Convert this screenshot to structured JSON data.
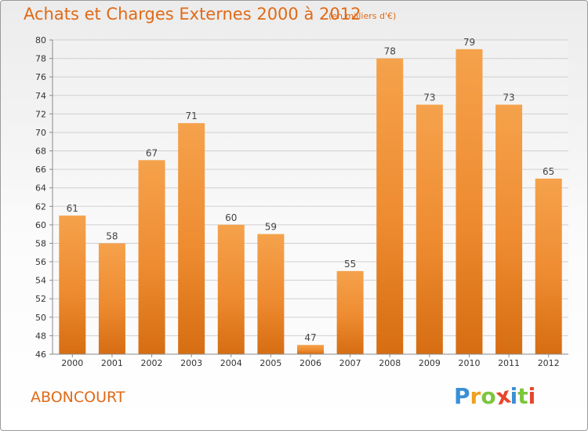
{
  "chart_data": {
    "type": "bar",
    "title": "Achats et Charges Externes 2000 à 2012",
    "subtitle": "(en milliers d'€)",
    "categories": [
      "2000",
      "2001",
      "2002",
      "2003",
      "2004",
      "2005",
      "2006",
      "2007",
      "2008",
      "2009",
      "2010",
      "2011",
      "2012"
    ],
    "values": [
      61,
      58,
      67,
      71,
      60,
      59,
      47,
      55,
      78,
      73,
      79,
      73,
      65
    ],
    "ylim": [
      46,
      80
    ],
    "yticks": [
      46,
      48,
      50,
      52,
      54,
      56,
      58,
      60,
      62,
      64,
      66,
      68,
      70,
      72,
      74,
      76,
      78,
      80
    ],
    "xlabel": "",
    "ylabel": "",
    "grid": true,
    "bar_color": "#f0892c"
  },
  "commune": "ABONCOURT",
  "logo": {
    "text": "Proxiti",
    "letters": [
      "P",
      "r",
      "o",
      "x",
      "i",
      "t",
      "i"
    ],
    "colors": [
      "#3a8fd6",
      "#f0a020",
      "#7cc63d",
      "#e8452c",
      "#3a8fd6",
      "#7cc63d",
      "#e8452c"
    ]
  }
}
